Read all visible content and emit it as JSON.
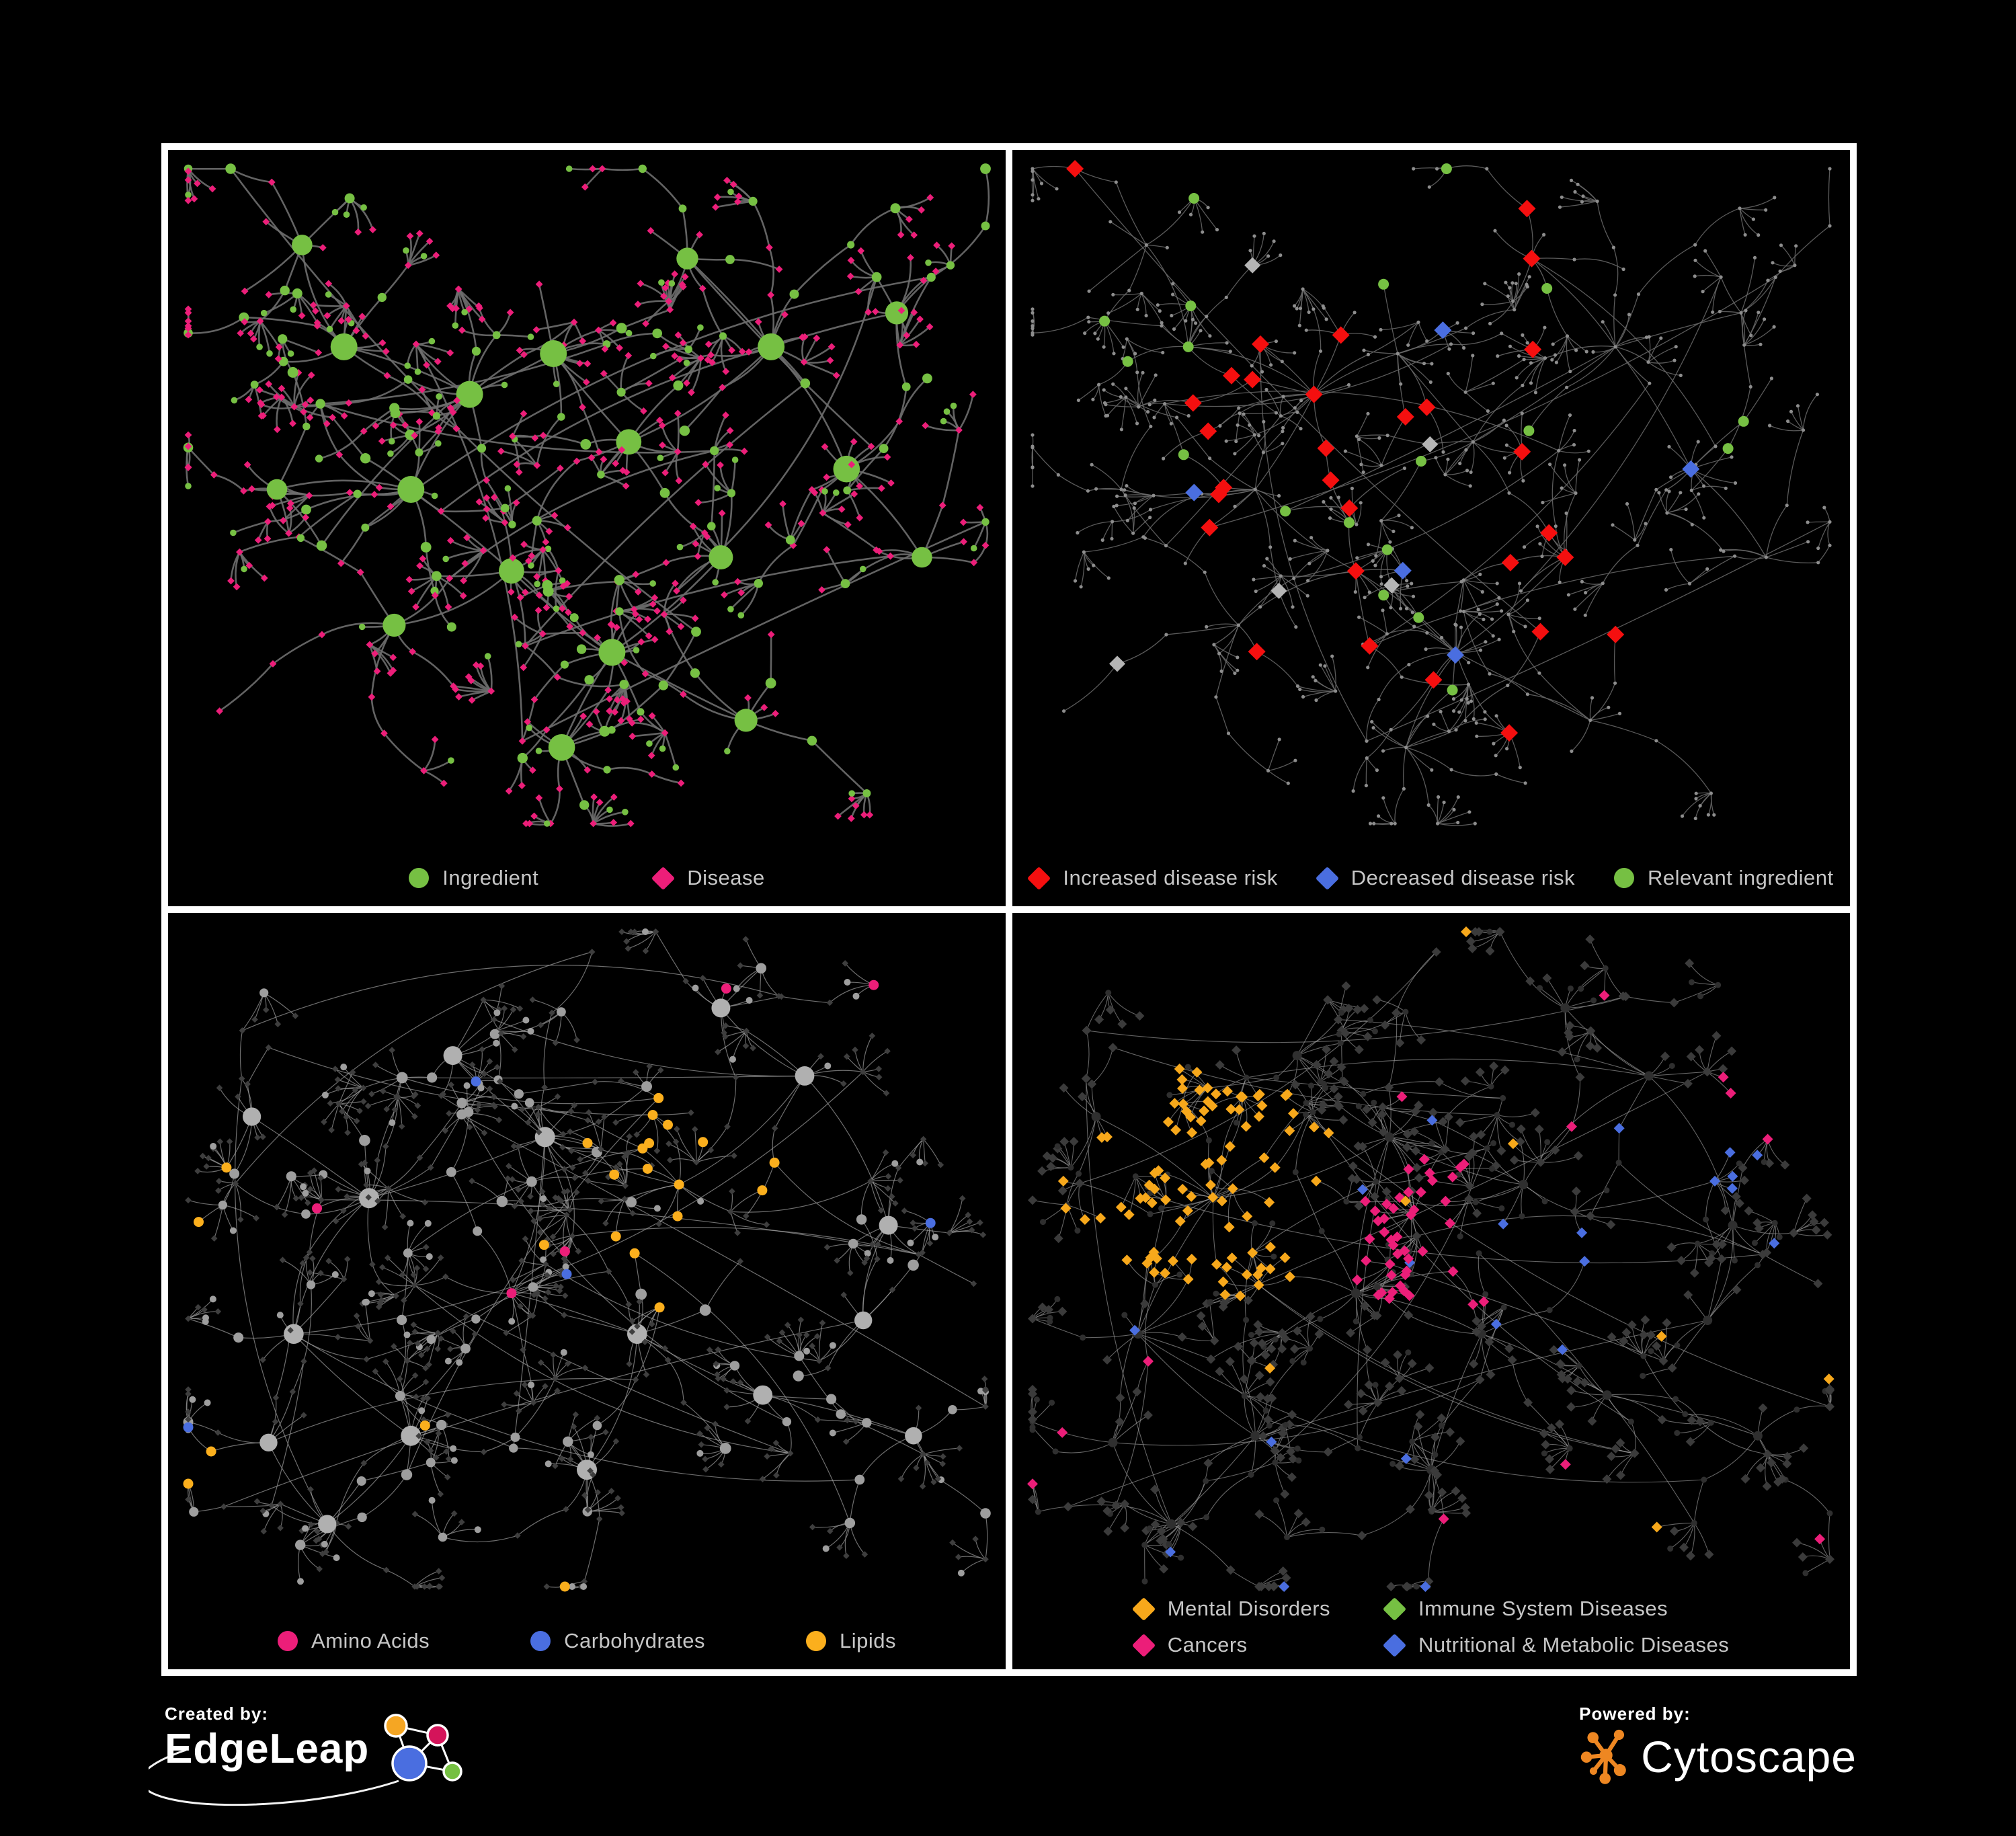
{
  "page": {
    "background": "#000000",
    "frame_color": "#ffffff",
    "legend_text_color": "#c6c6c6"
  },
  "panels": [
    {
      "id": "ingredient-disease",
      "legend": [
        {
          "shape": "circle",
          "color": "#76c043",
          "label": "Ingredient"
        },
        {
          "shape": "diamond",
          "color": "#ec1e79",
          "label": "Disease"
        }
      ]
    },
    {
      "id": "disease-risk",
      "legend": [
        {
          "shape": "diamond",
          "color": "#f50f0f",
          "label": "Increased disease risk"
        },
        {
          "shape": "diamond",
          "color": "#4a6ee0",
          "label": "Decreased disease risk"
        },
        {
          "shape": "circle",
          "color": "#76c043",
          "label": "Relevant ingredient"
        }
      ]
    },
    {
      "id": "nutrient-classes",
      "legend": [
        {
          "shape": "circle",
          "color": "#ec1e79",
          "label": "Amino Acids"
        },
        {
          "shape": "circle",
          "color": "#4a6ee0",
          "label": "Carbohydrates"
        },
        {
          "shape": "circle",
          "color": "#fbaf1d",
          "label": "Lipids"
        }
      ]
    },
    {
      "id": "disease-classes",
      "legend": [
        {
          "shape": "diamond",
          "color": "#f7a81b",
          "label": "Mental Disorders"
        },
        {
          "shape": "diamond",
          "color": "#76c043",
          "label": "Immune System Diseases"
        },
        {
          "shape": "diamond",
          "color": "#ec1e79",
          "label": "Cancers"
        },
        {
          "shape": "diamond",
          "color": "#4a6ee0",
          "label": "Nutritional & Metabolic Diseases"
        }
      ]
    }
  ],
  "footer": {
    "created_by_label": "Created by:",
    "created_by_name": "EdgeLeap",
    "powered_by_label": "Powered by:",
    "powered_by_name": "Cytoscape",
    "edgeleap_logo_colors": {
      "orange": "#f5a623",
      "magenta": "#d4145a",
      "blue": "#4a6ee0",
      "green": "#76c043"
    },
    "cytoscape_logo_color": "#ee8722"
  },
  "chart_data": {
    "type": "network-panels",
    "layouts": {
      "top": {
        "seed": 20,
        "extra_links": 14,
        "clusters": [
          [
            0.36,
            0.36,
            3
          ],
          [
            0.29,
            0.5,
            3
          ],
          [
            0.46,
            0.3,
            2
          ],
          [
            0.21,
            0.29,
            2
          ],
          [
            0.55,
            0.43,
            2
          ],
          [
            0.41,
            0.62,
            2
          ],
          [
            0.27,
            0.7,
            2
          ],
          [
            0.53,
            0.74,
            2
          ],
          [
            0.66,
            0.6,
            1
          ],
          [
            0.72,
            0.29,
            2
          ],
          [
            0.62,
            0.16,
            1
          ],
          [
            0.81,
            0.47,
            1
          ],
          [
            0.13,
            0.5,
            1
          ],
          [
            0.47,
            0.88,
            2
          ],
          [
            0.69,
            0.84,
            1
          ],
          [
            0.87,
            0.24,
            2
          ],
          [
            0.16,
            0.14,
            1
          ],
          [
            0.9,
            0.6,
            1
          ]
        ]
      },
      "bottom": {
        "seed": 77,
        "extra_links": 26,
        "clusters": [
          [
            0.24,
            0.42,
            3
          ],
          [
            0.45,
            0.33,
            3
          ],
          [
            0.61,
            0.4,
            2
          ],
          [
            0.34,
            0.21,
            2
          ],
          [
            0.15,
            0.62,
            2
          ],
          [
            0.41,
            0.56,
            2
          ],
          [
            0.56,
            0.62,
            2
          ],
          [
            0.29,
            0.77,
            2
          ],
          [
            0.5,
            0.82,
            2
          ],
          [
            0.71,
            0.71,
            1
          ],
          [
            0.76,
            0.24,
            1
          ],
          [
            0.86,
            0.46,
            1
          ],
          [
            0.1,
            0.3,
            1
          ],
          [
            0.66,
            0.14,
            1
          ],
          [
            0.89,
            0.77,
            1
          ],
          [
            0.19,
            0.9,
            1
          ],
          [
            0.83,
            0.6,
            1
          ],
          [
            0.12,
            0.78,
            1
          ]
        ]
      }
    },
    "panels": [
      {
        "layout": "top",
        "style": "full",
        "seed": 101,
        "edge": {
          "color": "#6e6e6e",
          "width": 2.6,
          "opacity": 0.9
        },
        "palette": {
          "circle": "#76c043",
          "diamond": "#ec1e79"
        }
      },
      {
        "layout": "top",
        "style": "highlight",
        "seed": 202,
        "edge": {
          "color": "#6a6a6a",
          "width": 1.3,
          "opacity": 0.85
        },
        "palette": {
          "base": "#8d8d8d",
          "increased": "#f50f0f",
          "decreased": "#4a6ee0",
          "neutral": "#b5b5b5",
          "ingredient": "#76c043"
        },
        "highlight": {
          "center": [
            0.42,
            0.42
          ],
          "sigma": 0.25,
          "rate": 0.55,
          "far": [
            0.74,
            0.78,
            0.1,
            0.45
          ],
          "mix": {
            "increased": 0.42,
            "ingredient": 0.34,
            "decreased": 0.13,
            "neutral": 0.11
          }
        }
      },
      {
        "layout": "bottom",
        "style": "classes-circles",
        "seed": 303,
        "edge": {
          "color": "#9c9c9c",
          "width": 1.2,
          "opacity": 0.7
        },
        "palette": {
          "circle": "#9e9e9e",
          "hub": "#b0b0b0",
          "diamond": "#3e3e3e",
          "amino": "#ec1e79",
          "carb": "#4a6ee0",
          "lipid": "#fbaf1d"
        },
        "regions": {
          "lipid_core": [
            0.61,
            0.38,
            0.15,
            0.82
          ],
          "carb_core": [
            0.57,
            0.46,
            0.08,
            0.55
          ],
          "lipid_scatter": 0.05,
          "carb_scatter": 0.02,
          "amino_scatter": 0.05
        }
      },
      {
        "layout": "bottom",
        "style": "classes-diamonds",
        "seed": 404,
        "edge": {
          "color": "#9a9a9a",
          "width": 1.1,
          "opacity": 0.65
        },
        "palette": {
          "circle": "#2f2f2f",
          "diamond": "#3b3b3b",
          "mental": "#f7a81b",
          "immune": "#76c043",
          "cancer": "#ec1e79",
          "nutri": "#4a6ee0"
        },
        "regions": {
          "mental_core": [
            0.23,
            0.4,
            0.17,
            0.92
          ],
          "cancer_core": [
            0.5,
            0.48,
            0.12,
            0.7
          ],
          "cancer_tr": [
            0.9,
            0.28,
            0.07,
            0.8
          ],
          "nutri_core": [
            0.64,
            0.55,
            0.09,
            0.8
          ],
          "nutri_tr": [
            0.8,
            0.34,
            0.1,
            0.5
          ],
          "nutri_scatter": 0.04,
          "mental_scatter": 0.02,
          "cancer_scatter": 0.018,
          "immune_scatter": 0.014
        }
      }
    ]
  }
}
